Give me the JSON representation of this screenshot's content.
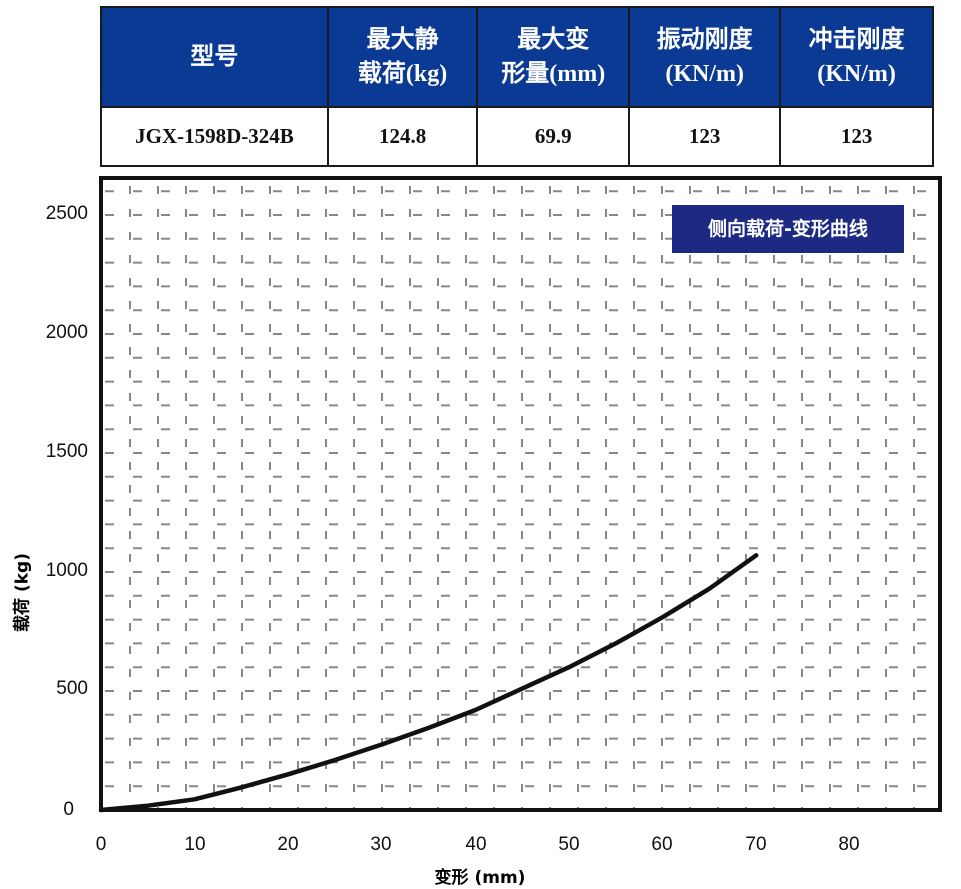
{
  "table": {
    "headers": [
      "型号",
      "最大静\n载荷(kg)",
      "最大变\n形量(mm)",
      "振动刚度\n(KN/m)",
      "冲击刚度\n(KN/m)"
    ],
    "header_lines": [
      [
        "型号"
      ],
      [
        "最大静",
        "载荷(kg)"
      ],
      [
        "最大变",
        "形量(mm)"
      ],
      [
        "振动刚度",
        "(KN/m)"
      ],
      [
        "冲击刚度",
        "(KN/m)"
      ]
    ],
    "row": [
      "JGX-1598D-324B",
      "124.8",
      "69.9",
      "123",
      "123"
    ],
    "header_bg": "#0b3a94"
  },
  "chart": {
    "title": "侧向载荷-变形曲线",
    "xlabel": "变形 (mm)",
    "ylabel": "载荷 (kg)",
    "yticks": [
      "2500",
      "2000",
      "1500",
      "1000",
      "500",
      "0"
    ],
    "xticks": [
      "0",
      "10",
      "20",
      "30",
      "40",
      "50",
      "60",
      "70",
      "80"
    ],
    "title_bg": "#1d2a84"
  },
  "chart_data": {
    "type": "line",
    "title": "侧向载荷-变形曲线",
    "xlabel": "变形 (mm)",
    "ylabel": "载荷 (kg)",
    "xlim": [
      0,
      89
    ],
    "ylim": [
      0,
      2650
    ],
    "grid": true,
    "legend_position": "none",
    "x": [
      0,
      5,
      10,
      15,
      20,
      25,
      30,
      35,
      40,
      45,
      50,
      55,
      60,
      65,
      70
    ],
    "series": [
      {
        "name": "侧向载荷-变形曲线",
        "values": [
          0,
          18,
          45,
          95,
          150,
          210,
          275,
          345,
          420,
          510,
          600,
          700,
          810,
          930,
          1070
        ]
      }
    ]
  }
}
